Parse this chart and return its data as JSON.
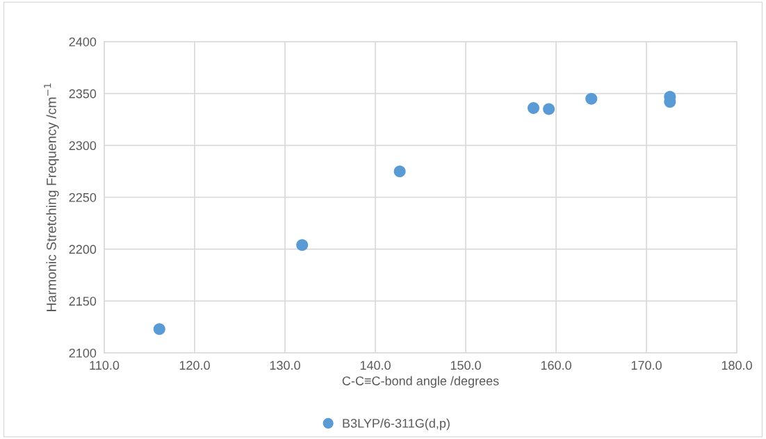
{
  "chart_data": {
    "type": "scatter",
    "xlabel": "C-C≡C-bond angle /degrees",
    "ylabel": "Harmonic Stretching Frequency /cm$^{−1}$",
    "x": [
      116.1,
      131.9,
      142.7,
      157.5,
      159.2,
      163.9,
      172.6,
      172.6
    ],
    "series": [
      {
        "name": "B3LYP/6-311G(d,p)",
        "color": "#5b9bd5",
        "values": [
          2123,
          2204,
          2275,
          2336,
          2335,
          2345,
          2347,
          2342
        ]
      }
    ],
    "xlim": [
      110,
      180
    ],
    "xticks": [
      {
        "value": 110,
        "label": "110.0"
      },
      {
        "value": 120,
        "label": "120.0"
      },
      {
        "value": 130,
        "label": "130.0"
      },
      {
        "value": 140,
        "label": "140.0"
      },
      {
        "value": 150,
        "label": "150.0"
      },
      {
        "value": 160,
        "label": "160.0"
      },
      {
        "value": 170,
        "label": "170.0"
      },
      {
        "value": 180,
        "label": "180.0"
      }
    ],
    "ylim": [
      2100,
      2400
    ],
    "yticks": [
      2100,
      2150,
      2200,
      2250,
      2300,
      2350,
      2400
    ],
    "grid": true,
    "legend": "bottom",
    "marker": "circle"
  }
}
